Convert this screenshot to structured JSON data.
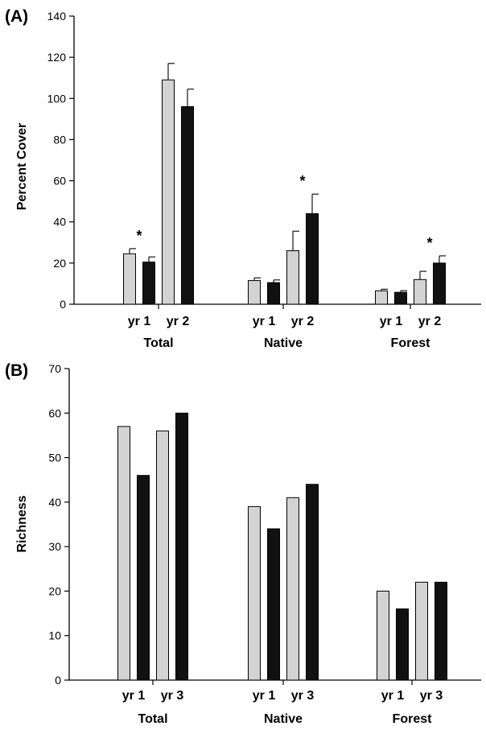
{
  "colors": {
    "year_a_bar": "#d3d3d3",
    "year_b_bar": "#111111",
    "axis": "#000000"
  },
  "chart_data": [
    {
      "panel_label": "(A)",
      "type": "bar",
      "ylabel": "Percent Cover",
      "ylim": [
        0,
        140
      ],
      "yticks": [
        0,
        20,
        40,
        60,
        80,
        100,
        120,
        140
      ],
      "grid": false,
      "error_bars": true,
      "groups": [
        {
          "name": "Total",
          "year_labels": [
            "yr 1",
            "yr 2"
          ],
          "bars": [
            {
              "year": "yr 1",
              "fill": "gray",
              "value": 24.5,
              "error": 2.5
            },
            {
              "year": "yr 1",
              "fill": "black",
              "value": 20.5,
              "error": 2.5
            },
            {
              "year": "yr 2",
              "fill": "gray",
              "value": 109,
              "error": 8
            },
            {
              "year": "yr 2",
              "fill": "black",
              "value": 96,
              "error": 8.5
            }
          ],
          "annotations": [
            {
              "text": "*",
              "year": "yr 1"
            }
          ]
        },
        {
          "name": "Native",
          "year_labels": [
            "yr 1",
            "yr 2"
          ],
          "bars": [
            {
              "year": "yr 1",
              "fill": "gray",
              "value": 11.5,
              "error": 1.3
            },
            {
              "year": "yr 1",
              "fill": "black",
              "value": 10.5,
              "error": 1.3
            },
            {
              "year": "yr 2",
              "fill": "gray",
              "value": 26,
              "error": 9.5
            },
            {
              "year": "yr 2",
              "fill": "black",
              "value": 44,
              "error": 9.5
            }
          ],
          "annotations": [
            {
              "text": "*",
              "year": "yr 2"
            }
          ]
        },
        {
          "name": "Forest",
          "year_labels": [
            "yr 1",
            "yr 2"
          ],
          "bars": [
            {
              "year": "yr 1",
              "fill": "gray",
              "value": 6.5,
              "error": 0.8
            },
            {
              "year": "yr 1",
              "fill": "black",
              "value": 5.8,
              "error": 0.8
            },
            {
              "year": "yr 2",
              "fill": "gray",
              "value": 12,
              "error": 4
            },
            {
              "year": "yr 2",
              "fill": "black",
              "value": 20,
              "error": 3.5
            }
          ],
          "annotations": [
            {
              "text": "*",
              "year": "yr 2"
            }
          ]
        }
      ]
    },
    {
      "panel_label": "(B)",
      "type": "bar",
      "ylabel": "Richness",
      "ylim": [
        0,
        70
      ],
      "yticks": [
        0,
        10,
        20,
        30,
        40,
        50,
        60,
        70
      ],
      "grid": false,
      "error_bars": false,
      "groups": [
        {
          "name": "Total",
          "year_labels": [
            "yr 1",
            "yr 3"
          ],
          "bars": [
            {
              "year": "yr 1",
              "fill": "gray",
              "value": 57
            },
            {
              "year": "yr 1",
              "fill": "black",
              "value": 46
            },
            {
              "year": "yr 3",
              "fill": "gray",
              "value": 56
            },
            {
              "year": "yr 3",
              "fill": "black",
              "value": 60
            }
          ],
          "annotations": []
        },
        {
          "name": "Native",
          "year_labels": [
            "yr 1",
            "yr 3"
          ],
          "bars": [
            {
              "year": "yr 1",
              "fill": "gray",
              "value": 39
            },
            {
              "year": "yr 1",
              "fill": "black",
              "value": 34
            },
            {
              "year": "yr 3",
              "fill": "gray",
              "value": 41
            },
            {
              "year": "yr 3",
              "fill": "black",
              "value": 44
            }
          ],
          "annotations": []
        },
        {
          "name": "Forest",
          "year_labels": [
            "yr 1",
            "yr 3"
          ],
          "bars": [
            {
              "year": "yr 1",
              "fill": "gray",
              "value": 20
            },
            {
              "year": "yr 1",
              "fill": "black",
              "value": 16
            },
            {
              "year": "yr 3",
              "fill": "gray",
              "value": 22
            },
            {
              "year": "yr 3",
              "fill": "black",
              "value": 22
            }
          ],
          "annotations": []
        }
      ]
    }
  ]
}
